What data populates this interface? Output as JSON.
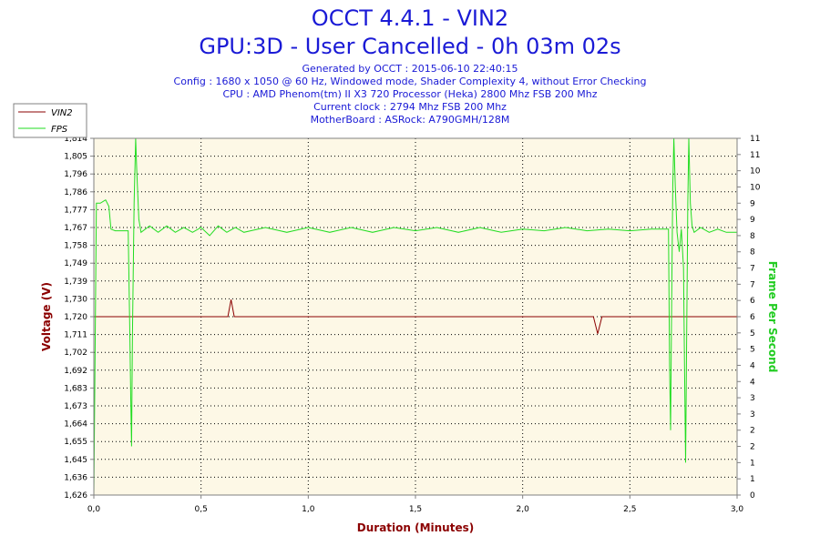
{
  "header": {
    "title_line1": "OCCT 4.4.1 - VIN2",
    "title_line2": "GPU:3D - User Cancelled - 0h 03m 02s",
    "generated": "Generated by OCCT : 2015-06-10 22:40:15",
    "config": "Config : 1680 x 1050 @ 60 Hz, Windowed mode, Shader Complexity 4, without Error Checking",
    "cpu": "CPU : AMD Phenom(tm) II X3 720 Processor (Heka) 2800 Mhz FSB 200 Mhz",
    "clock": "Current clock : 2794 Mhz FSB 200 Mhz",
    "motherboard": "MotherBoard : ASRock: A790GMH/128M"
  },
  "chart_data": {
    "type": "line",
    "xlabel": "Duration (Minutes)",
    "ylabel_left": "Voltage (V)",
    "ylabel_right": "Frame Per Second",
    "xlim": [
      0,
      3.0
    ],
    "ylim_left": [
      1.626,
      1.814
    ],
    "ylim_right": [
      0,
      11
    ],
    "x_ticks": [
      "0,0",
      "0,5",
      "1,0",
      "1,5",
      "2,0",
      "2,5",
      "3,0"
    ],
    "x_tick_values": [
      0,
      0.5,
      1.0,
      1.5,
      2.0,
      2.5,
      3.0
    ],
    "y_left_ticks": [
      "1,626",
      "1,636",
      "1,645",
      "1,655",
      "1,664",
      "1,673",
      "1,683",
      "1,692",
      "1,702",
      "1,711",
      "1,720",
      "1,730",
      "1,739",
      "1,749",
      "1,758",
      "1,767",
      "1,777",
      "1,786",
      "1,796",
      "1,805",
      "1,814"
    ],
    "y_right_ticks": [
      "0",
      "1",
      "1",
      "2",
      "2",
      "3",
      "3",
      "4",
      "4",
      "5",
      "5",
      "6",
      "6",
      "7",
      "7",
      "8",
      "8",
      "9",
      "9",
      "10",
      "10",
      "11",
      "11"
    ],
    "legend_placement": "top-left",
    "grid": true,
    "series": [
      {
        "name": "VIN2",
        "axis": "left",
        "color": "#8b0000",
        "points": [
          [
            0.0,
            1.72
          ],
          [
            0.625,
            1.72
          ],
          [
            0.64,
            1.729
          ],
          [
            0.655,
            1.72
          ],
          [
            2.33,
            1.72
          ],
          [
            2.35,
            1.711
          ],
          [
            2.37,
            1.72
          ],
          [
            3.0,
            1.72
          ]
        ]
      },
      {
        "name": "FPS",
        "axis": "right",
        "color": "#22dd22",
        "points": [
          [
            0.0,
            0.0
          ],
          [
            0.012,
            9.0
          ],
          [
            0.03,
            9.0
          ],
          [
            0.055,
            9.1
          ],
          [
            0.07,
            8.9
          ],
          [
            0.08,
            8.2
          ],
          [
            0.1,
            8.15
          ],
          [
            0.16,
            8.15
          ],
          [
            0.168,
            5.0
          ],
          [
            0.172,
            3.0
          ],
          [
            0.176,
            1.5
          ],
          [
            0.18,
            5.0
          ],
          [
            0.188,
            9.0
          ],
          [
            0.195,
            11.0
          ],
          [
            0.2,
            10.0
          ],
          [
            0.21,
            8.5
          ],
          [
            0.22,
            8.1
          ],
          [
            0.26,
            8.3
          ],
          [
            0.3,
            8.1
          ],
          [
            0.34,
            8.3
          ],
          [
            0.38,
            8.1
          ],
          [
            0.42,
            8.25
          ],
          [
            0.46,
            8.1
          ],
          [
            0.5,
            8.25
          ],
          [
            0.54,
            8.0
          ],
          [
            0.58,
            8.3
          ],
          [
            0.62,
            8.1
          ],
          [
            0.66,
            8.25
          ],
          [
            0.7,
            8.1
          ],
          [
            0.8,
            8.25
          ],
          [
            0.9,
            8.1
          ],
          [
            1.0,
            8.25
          ],
          [
            1.1,
            8.1
          ],
          [
            1.2,
            8.25
          ],
          [
            1.3,
            8.1
          ],
          [
            1.4,
            8.25
          ],
          [
            1.5,
            8.15
          ],
          [
            1.6,
            8.25
          ],
          [
            1.7,
            8.1
          ],
          [
            1.8,
            8.25
          ],
          [
            1.9,
            8.1
          ],
          [
            2.0,
            8.2
          ],
          [
            2.1,
            8.15
          ],
          [
            2.2,
            8.25
          ],
          [
            2.3,
            8.15
          ],
          [
            2.4,
            8.2
          ],
          [
            2.5,
            8.15
          ],
          [
            2.6,
            8.2
          ],
          [
            2.68,
            8.2
          ],
          [
            2.685,
            4.0
          ],
          [
            2.69,
            2.0
          ],
          [
            2.695,
            6.0
          ],
          [
            2.7,
            9.5
          ],
          [
            2.705,
            11.0
          ],
          [
            2.712,
            9.5
          ],
          [
            2.72,
            8.1
          ],
          [
            2.73,
            7.5
          ],
          [
            2.74,
            8.2
          ],
          [
            2.75,
            7.0
          ],
          [
            2.755,
            4.0
          ],
          [
            2.76,
            1.0
          ],
          [
            2.765,
            5.0
          ],
          [
            2.77,
            9.0
          ],
          [
            2.775,
            11.0
          ],
          [
            2.782,
            9.0
          ],
          [
            2.79,
            8.3
          ],
          [
            2.8,
            8.1
          ],
          [
            2.83,
            8.25
          ],
          [
            2.87,
            8.1
          ],
          [
            2.91,
            8.2
          ],
          [
            2.95,
            8.1
          ],
          [
            3.0,
            8.1
          ]
        ]
      }
    ]
  }
}
